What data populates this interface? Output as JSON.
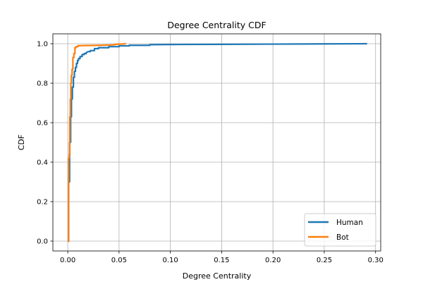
{
  "chart_data": {
    "type": "line",
    "title": "Degree Centrality CDF",
    "xlabel": "Degree Centrality",
    "ylabel": "CDF",
    "xlim": [
      -0.0145,
      0.305
    ],
    "ylim": [
      -0.05,
      1.05
    ],
    "xticks": [
      0.0,
      0.05,
      0.1,
      0.15,
      0.2,
      0.25,
      0.3
    ],
    "xtick_labels": [
      "0.00",
      "0.05",
      "0.10",
      "0.15",
      "0.20",
      "0.25",
      "0.30"
    ],
    "yticks": [
      0.0,
      0.2,
      0.4,
      0.6,
      0.8,
      1.0
    ],
    "ytick_labels": [
      "0.0",
      "0.2",
      "0.4",
      "0.6",
      "0.8",
      "1.0"
    ],
    "grid": true,
    "legend_position": "lower-right",
    "series": [
      {
        "name": "Human",
        "color": "#1f77b4",
        "x": [
          0.0008,
          0.0008,
          0.0018,
          0.0018,
          0.0028,
          0.0028,
          0.0036,
          0.0036,
          0.0045,
          0.0045,
          0.0055,
          0.0055,
          0.0065,
          0.0065,
          0.0075,
          0.0075,
          0.0085,
          0.0085,
          0.0095,
          0.0095,
          0.0105,
          0.0105,
          0.012,
          0.012,
          0.014,
          0.014,
          0.016,
          0.016,
          0.018,
          0.018,
          0.02,
          0.022,
          0.022,
          0.026,
          0.026,
          0.03,
          0.03,
          0.04,
          0.04,
          0.05,
          0.05,
          0.06,
          0.06,
          0.08,
          0.08,
          0.1,
          0.15,
          0.2,
          0.25,
          0.291
        ],
        "y": [
          0.0,
          0.3,
          0.3,
          0.5,
          0.5,
          0.63,
          0.63,
          0.72,
          0.72,
          0.78,
          0.78,
          0.83,
          0.83,
          0.86,
          0.86,
          0.88,
          0.88,
          0.9,
          0.9,
          0.915,
          0.915,
          0.925,
          0.925,
          0.935,
          0.935,
          0.945,
          0.945,
          0.95,
          0.95,
          0.955,
          0.96,
          0.96,
          0.965,
          0.965,
          0.975,
          0.975,
          0.98,
          0.98,
          0.985,
          0.985,
          0.989,
          0.989,
          0.992,
          0.992,
          0.995,
          0.996,
          0.997,
          0.998,
          0.999,
          1.0
        ]
      },
      {
        "name": "Bot",
        "color": "#ff7f0e",
        "x": [
          0.0008,
          0.0008,
          0.0014,
          0.0014,
          0.002,
          0.002,
          0.0025,
          0.0025,
          0.003,
          0.003,
          0.0035,
          0.0035,
          0.0042,
          0.0042,
          0.005,
          0.005,
          0.006,
          0.006,
          0.007,
          0.007,
          0.008,
          0.008,
          0.01,
          0.01,
          0.02,
          0.03,
          0.045,
          0.045,
          0.055,
          0.056
        ],
        "y": [
          0.0,
          0.42,
          0.42,
          0.44,
          0.44,
          0.63,
          0.63,
          0.72,
          0.72,
          0.8,
          0.8,
          0.84,
          0.84,
          0.87,
          0.87,
          0.93,
          0.93,
          0.95,
          0.95,
          0.98,
          0.98,
          0.985,
          0.985,
          0.99,
          0.991,
          0.992,
          0.994,
          0.996,
          0.999,
          1.0
        ]
      }
    ]
  }
}
